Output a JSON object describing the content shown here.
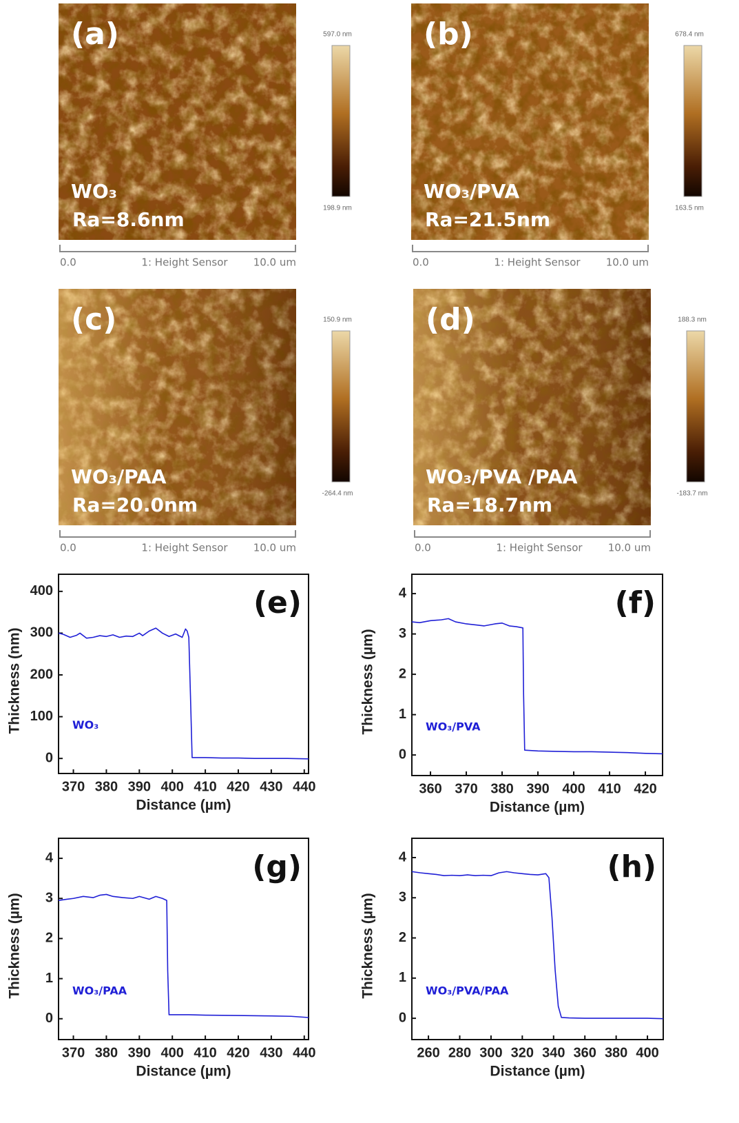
{
  "afm_images": [
    {
      "letter": "(a)",
      "sample": "WO₃",
      "ra": "Ra=8.6nm",
      "colorbar_max": "597.0 nm",
      "colorbar_min": "198.9 nm",
      "scale_start": "0.0",
      "scale_channel": "1: Height Sensor",
      "scale_end": "10.0 um"
    },
    {
      "letter": "(b)",
      "sample": "WO₃/PVA",
      "ra": "Ra=21.5nm",
      "colorbar_max": "678.4 nm",
      "colorbar_min": "163.5 nm",
      "scale_start": "0.0",
      "scale_channel": "1: Height Sensor",
      "scale_end": "10.0 um"
    },
    {
      "letter": "(c)",
      "sample": "WO₃/PAA",
      "ra": "Ra=20.0nm",
      "colorbar_max": "150.9 nm",
      "colorbar_min": "-264.4 nm",
      "scale_start": "0.0",
      "scale_channel": "1: Height Sensor",
      "scale_end": "10.0 um"
    },
    {
      "letter": "(d)",
      "sample": "WO₃/PVA /PAA",
      "ra": "Ra=18.7nm",
      "colorbar_max": "188.3 nm",
      "colorbar_min": "-183.7 nm",
      "scale_start": "0.0",
      "scale_channel": "1: Height Sensor",
      "scale_end": "10.0 um"
    }
  ],
  "chart_data": [
    {
      "type": "line",
      "panel_label": "(e)",
      "xlabel": "Distance (µm)",
      "ylabel": "Thickness (nm)",
      "x": [
        365.5,
        367,
        369,
        371,
        372,
        374,
        376,
        378,
        380,
        382,
        384,
        386,
        388,
        390,
        391,
        393,
        395,
        397,
        399,
        401,
        403,
        404,
        404.5,
        405,
        405.5,
        406,
        410,
        415,
        420,
        425,
        430,
        435,
        441.3
      ],
      "series": [
        {
          "name": "WO₃",
          "color": "#1f1fd6",
          "values": [
            300,
            297,
            290,
            295,
            300,
            288,
            290,
            294,
            292,
            296,
            290,
            293,
            292,
            300,
            294,
            305,
            312,
            300,
            292,
            298,
            290,
            310,
            305,
            290,
            150,
            2,
            2,
            1,
            1,
            0,
            0,
            0,
            -1
          ]
        }
      ],
      "xlim": [
        365.5,
        441.3
      ],
      "ylim": [
        -36,
        441
      ],
      "xticks": [
        370,
        380,
        390,
        400,
        410,
        420,
        430,
        440
      ],
      "yticks": [
        0,
        100,
        200,
        300,
        400
      ]
    },
    {
      "type": "line",
      "panel_label": "(f)",
      "xlabel": "Distance (µm)",
      "ylabel": "Thickness (µm)",
      "x": [
        354.8,
        357,
        360,
        363,
        365,
        367,
        370,
        373,
        375,
        378,
        380,
        382,
        384,
        385.8,
        386,
        386.3,
        390,
        395,
        400,
        405,
        410,
        415,
        420,
        424.8
      ],
      "series": [
        {
          "name": "WO₃/PVA",
          "color": "#1f1fd6",
          "values": [
            3.3,
            3.28,
            3.33,
            3.35,
            3.38,
            3.3,
            3.25,
            3.22,
            3.2,
            3.25,
            3.27,
            3.2,
            3.18,
            3.15,
            1.5,
            0.12,
            0.1,
            0.09,
            0.08,
            0.08,
            0.07,
            0.06,
            0.04,
            0.03
          ]
        }
      ],
      "xlim": [
        354.8,
        424.8
      ],
      "ylim": [
        -0.51,
        4.48
      ],
      "xticks": [
        360,
        370,
        380,
        390,
        400,
        410,
        420
      ],
      "yticks": [
        0,
        1,
        2,
        3,
        4
      ]
    },
    {
      "type": "line",
      "panel_label": "(g)",
      "xlabel": "Distance (µm)",
      "ylabel": "Thickness (µm)",
      "x": [
        365.5,
        368,
        370,
        373,
        376,
        378,
        380,
        382,
        385,
        388,
        390,
        393,
        395,
        397,
        398.3,
        398.6,
        399,
        405,
        410,
        420,
        430,
        436,
        441.3
      ],
      "series": [
        {
          "name": "WO₃/PAA",
          "color": "#1f1fd6",
          "values": [
            2.95,
            2.98,
            3.0,
            3.05,
            3.02,
            3.08,
            3.1,
            3.05,
            3.02,
            3.0,
            3.05,
            2.98,
            3.05,
            3.0,
            2.95,
            1.2,
            0.1,
            0.1,
            0.09,
            0.08,
            0.07,
            0.06,
            0.03
          ]
        }
      ],
      "xlim": [
        365.5,
        441.3
      ],
      "ylim": [
        -0.52,
        4.5
      ],
      "xticks": [
        370,
        380,
        390,
        400,
        410,
        420,
        430,
        440
      ],
      "yticks": [
        0,
        1,
        2,
        3,
        4
      ]
    },
    {
      "type": "line",
      "panel_label": "(h)",
      "xlabel": "Distance (µm)",
      "ylabel": "Thickness (µm)",
      "x": [
        249.4,
        255,
        260,
        265,
        270,
        275,
        280,
        285,
        290,
        295,
        300,
        305,
        310,
        315,
        320,
        325,
        330,
        335,
        337,
        339,
        341,
        343,
        345,
        350,
        360,
        380,
        400,
        410.1
      ],
      "series": [
        {
          "name": "WO₃/PVA/PAA",
          "color": "#1f1fd6",
          "values": [
            3.65,
            3.62,
            3.6,
            3.58,
            3.55,
            3.56,
            3.55,
            3.57,
            3.55,
            3.56,
            3.55,
            3.62,
            3.65,
            3.62,
            3.6,
            3.58,
            3.57,
            3.6,
            3.5,
            2.5,
            1.2,
            0.3,
            0.02,
            0.01,
            0,
            0,
            0,
            -0.01
          ]
        }
      ],
      "xlim": [
        249.4,
        410.1
      ],
      "ylim": [
        -0.53,
        4.48
      ],
      "xticks": [
        260,
        280,
        300,
        320,
        340,
        360,
        380,
        400
      ],
      "yticks": [
        0,
        1,
        2,
        3,
        4
      ]
    }
  ]
}
